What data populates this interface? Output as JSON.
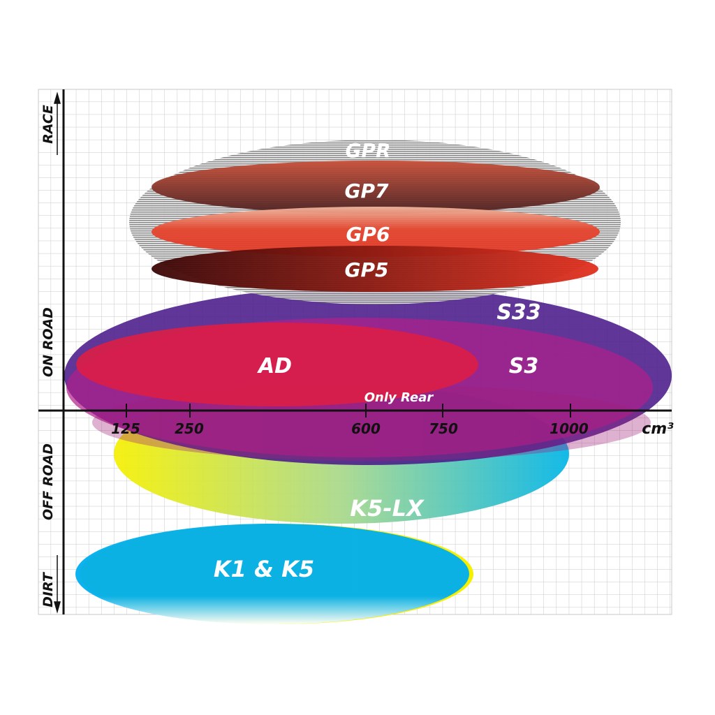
{
  "y_axis_labels": {
    "top": "RACE",
    "upper": "ON ROAD",
    "lower": "OFF ROAD",
    "bottom": "DIRT"
  },
  "x_axis": {
    "ticks": [
      "125",
      "250",
      "600",
      "750",
      "1000"
    ],
    "unit": "cm³"
  },
  "products": {
    "gpr": "GPR",
    "gp7": "GP7",
    "gp6": "GP6",
    "gp5": "GP5",
    "s33": "S33",
    "s3": "S3",
    "ad": "AD",
    "only_rear": "Only Rear",
    "k5lx": "K5-LX",
    "k1k5": "K1 & K5"
  },
  "colors": {
    "grid": "#c8c8c8",
    "gpr": "#9a9a9a",
    "gp7": "#8a3a2a",
    "gp6": "#e5452e",
    "gp5": "#7a1010",
    "s33": "#5a1f8f",
    "s3": "#a0208a",
    "ad": "#dc1e46",
    "k5lx_start": "#f5f000",
    "k5lx_end": "#00b4e6",
    "k1k5": "#00aeef"
  }
}
